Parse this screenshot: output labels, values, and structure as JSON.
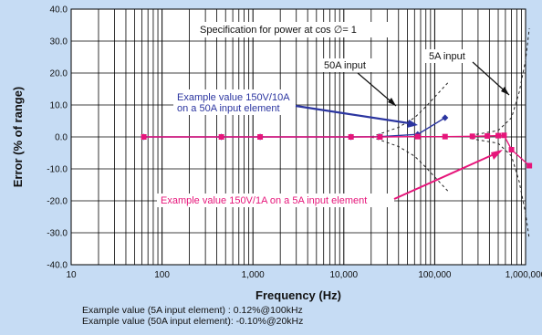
{
  "chart_data": {
    "type": "line",
    "title": "",
    "xlabel": "Frequency (Hz)",
    "ylabel": "Error (% of range)",
    "xscale": "log",
    "xlim": [
      10,
      1000000
    ],
    "ylim": [
      -40,
      40
    ],
    "grid": true,
    "x_ticks": [
      {
        "value": 10,
        "label": "10"
      },
      {
        "value": 100,
        "label": "100"
      },
      {
        "value": 1000,
        "label": "1,000"
      },
      {
        "value": 10000,
        "label": "10,000"
      },
      {
        "value": 100000,
        "label": "100,000"
      },
      {
        "value": 1000000,
        "label": "1,000,000"
      }
    ],
    "y_ticks": [
      {
        "value": 40,
        "label": "40.0"
      },
      {
        "value": 30,
        "label": "30.0"
      },
      {
        "value": 20,
        "label": "20.0"
      },
      {
        "value": 10,
        "label": "10.0"
      },
      {
        "value": 0,
        "label": "0.0"
      },
      {
        "value": -10,
        "label": "-10.0"
      },
      {
        "value": -20,
        "label": "-20.0"
      },
      {
        "value": -30,
        "label": "-30.0"
      },
      {
        "value": -40,
        "label": "-40.0"
      }
    ],
    "series": [
      {
        "name": "Example value 150V/10A on a 50A input element",
        "color": "#2b35a0",
        "marker": "diamond",
        "points": [
          {
            "x": 63,
            "y": 0.0
          },
          {
            "x": 450,
            "y": 0.0
          },
          {
            "x": 1200,
            "y": 0.0
          },
          {
            "x": 12000,
            "y": 0.0
          },
          {
            "x": 25000,
            "y": 0.1
          },
          {
            "x": 65000,
            "y": 0.8
          },
          {
            "x": 130000,
            "y": 6.0
          }
        ]
      },
      {
        "name": "Example value 150V/1A on a 5A input element",
        "color": "#e6157a",
        "marker": "square",
        "points": [
          {
            "x": 63,
            "y": 0.0
          },
          {
            "x": 450,
            "y": 0.0
          },
          {
            "x": 1200,
            "y": 0.0
          },
          {
            "x": 12000,
            "y": 0.0
          },
          {
            "x": 25000,
            "y": 0.0
          },
          {
            "x": 65000,
            "y": 0.1
          },
          {
            "x": 130000,
            "y": 0.1
          },
          {
            "x": 260000,
            "y": 0.2
          },
          {
            "x": 380000,
            "y": 0.3
          },
          {
            "x": 500000,
            "y": 0.4
          },
          {
            "x": 580000,
            "y": 0.5
          },
          {
            "x": 700000,
            "y": -4.0
          },
          {
            "x": 1100000,
            "y": -9.0
          }
        ]
      }
    ],
    "spec_lines": [
      {
        "name": "50A input",
        "color": "#222222",
        "dash": "3,3",
        "points": [
          {
            "x": 20000,
            "y": 0.0
          },
          {
            "x": 40000,
            "y": 3.0
          },
          {
            "x": 60000,
            "y": 6.0
          },
          {
            "x": 80000,
            "y": 9.5
          },
          {
            "x": 100000,
            "y": 12.5
          },
          {
            "x": 140000,
            "y": 17.0
          }
        ]
      },
      {
        "name": "50A input (negative)",
        "color": "#222222",
        "dash": "3,3",
        "points": [
          {
            "x": 20000,
            "y": 0.0
          },
          {
            "x": 40000,
            "y": -3.0
          },
          {
            "x": 60000,
            "y": -6.0
          },
          {
            "x": 80000,
            "y": -9.5
          },
          {
            "x": 100000,
            "y": -12.5
          },
          {
            "x": 140000,
            "y": -17.0
          }
        ]
      },
      {
        "name": "5A input",
        "color": "#222222",
        "dash": "3,3",
        "points": [
          {
            "x": 250000,
            "y": 0.5
          },
          {
            "x": 500000,
            "y": 2.0
          },
          {
            "x": 700000,
            "y": 6.0
          },
          {
            "x": 850000,
            "y": 14.0
          },
          {
            "x": 1000000,
            "y": 24.0
          },
          {
            "x": 1100000,
            "y": 34.0
          }
        ]
      },
      {
        "name": "5A input (negative)",
        "color": "#222222",
        "dash": "3,3",
        "points": [
          {
            "x": 250000,
            "y": -0.5
          },
          {
            "x": 500000,
            "y": -2.0
          },
          {
            "x": 700000,
            "y": -6.0
          },
          {
            "x": 850000,
            "y": -14.0
          },
          {
            "x": 1000000,
            "y": -24.0
          },
          {
            "x": 1100000,
            "y": -32.0
          }
        ]
      }
    ],
    "annotations": {
      "spec_title": "Specification for power at cos ∅= 1",
      "label_50a": "50A input",
      "label_5a": "5A input",
      "blue_label_line1": "Example value 150V/10A",
      "blue_label_line2": "on a 50A input element",
      "pink_label": "Example value 150V/1A on a 5A input element"
    },
    "footer": {
      "line1": "Example value (5A input element) : 0.12%@100kHz",
      "line2": "Example value (50A input element): -0.10%@20kHz"
    },
    "colors": {
      "background": "#c6dcf4",
      "plot_area": "#ffffff",
      "grid": "#000000",
      "blue": "#2b35a0",
      "pink": "#e6157a"
    }
  }
}
